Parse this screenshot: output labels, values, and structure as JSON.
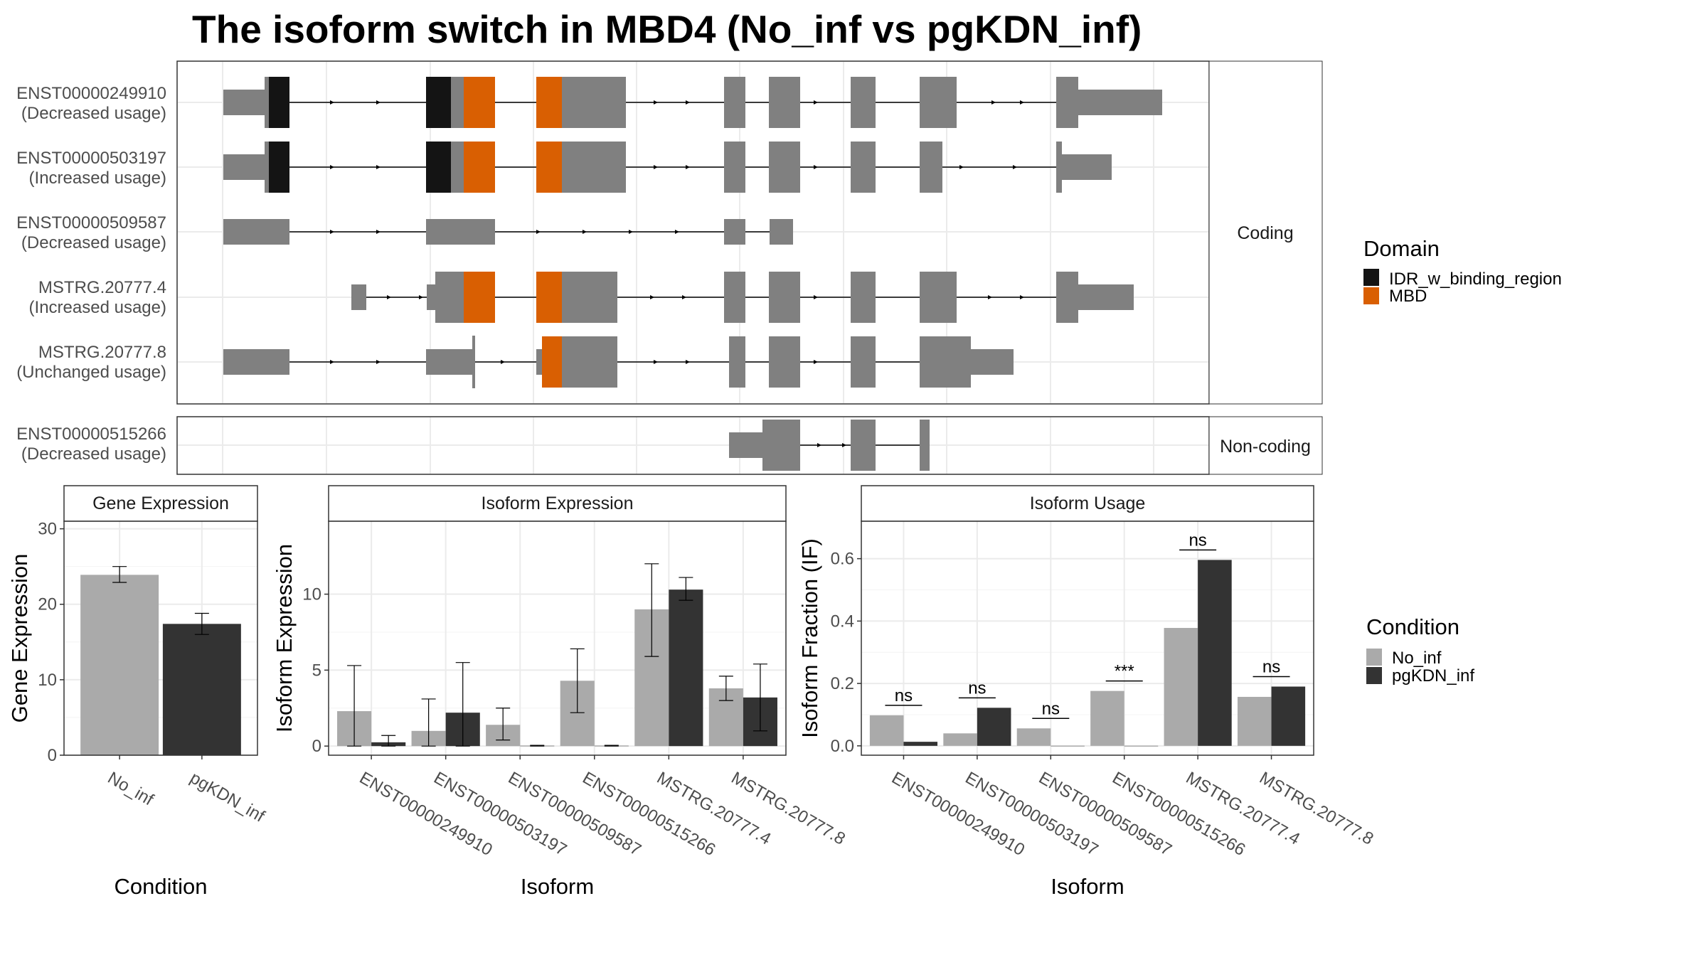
{
  "title": "The isoform switch in MBD4 (No_inf vs pgKDN_inf)",
  "colors": {
    "exon": "#808080",
    "idr": "#141414",
    "mbd": "#d95f02",
    "no_inf": "#aaaaaa",
    "pgkdn_inf": "#333333",
    "grid": "#ebebeb"
  },
  "structure": {
    "facets": [
      "Coding",
      "Non-coding"
    ],
    "transcripts": [
      {
        "id": "ENST00000249910",
        "usage": "(Decreased usage)"
      },
      {
        "id": "ENST00000503197",
        "usage": "(Increased usage)"
      },
      {
        "id": "ENST00000509587",
        "usage": "(Decreased usage)"
      },
      {
        "id": "MSTRG.20777.4",
        "usage": "(Increased usage)"
      },
      {
        "id": "MSTRG.20777.8",
        "usage": "(Unchanged usage)"
      },
      {
        "id": "ENST00000515266",
        "usage": "(Decreased usage)"
      }
    ]
  },
  "legends": {
    "domain": {
      "title": "Domain",
      "items": [
        "IDR_w_binding_region",
        "MBD"
      ]
    },
    "condition": {
      "title": "Condition",
      "items": [
        "No_inf",
        "pgKDN_inf"
      ]
    }
  },
  "chart_data": [
    {
      "type": "bar",
      "title": "Gene Expression",
      "xlabel": "Condition",
      "ylabel": "Gene Expression",
      "categories": [
        "No_inf",
        "pgKDN_inf"
      ],
      "values": [
        23.9,
        17.4
      ],
      "error": [
        [
          22.9,
          25.0
        ],
        [
          16.0,
          18.8
        ]
      ],
      "ylim": [
        0,
        31
      ],
      "yticks": [
        0,
        10,
        20,
        30
      ]
    },
    {
      "type": "bar",
      "title": "Isoform Expression",
      "xlabel": "Isoform",
      "ylabel": "Isoform Expression",
      "categories": [
        "ENST00000249910",
        "ENST00000503197",
        "ENST00000509587",
        "ENST00000515266",
        "MSTRG.20777.4",
        "MSTRG.20777.8"
      ],
      "ylim": [
        -0.6,
        14.8
      ],
      "yticks": [
        0,
        5,
        10
      ],
      "series": [
        {
          "name": "No_inf",
          "values": [
            2.3,
            1.0,
            1.4,
            4.3,
            9.0,
            3.8
          ],
          "error": [
            [
              0.0,
              5.3
            ],
            [
              0.0,
              3.1
            ],
            [
              0.4,
              2.5
            ],
            [
              2.2,
              6.4
            ],
            [
              5.9,
              12.0
            ],
            [
              3.0,
              4.6
            ]
          ]
        },
        {
          "name": "pgKDN_inf",
          "values": [
            0.25,
            2.2,
            0.02,
            0.02,
            10.3,
            3.2
          ],
          "error": [
            [
              0.0,
              0.7
            ],
            [
              0.0,
              5.5
            ],
            [
              0.0,
              0.05
            ],
            [
              0.0,
              0.05
            ],
            [
              9.6,
              11.1
            ],
            [
              1.0,
              5.4
            ]
          ]
        }
      ]
    },
    {
      "type": "bar",
      "title": "Isoform Usage",
      "xlabel": "Isoform",
      "ylabel": "Isoform Fraction (IF)",
      "categories": [
        "ENST00000249910",
        "ENST00000503197",
        "ENST00000509587",
        "ENST00000515266",
        "MSTRG.20777.4",
        "MSTRG.20777.8"
      ],
      "ylim": [
        -0.03,
        0.72
      ],
      "yticks": [
        0.0,
        0.2,
        0.4,
        0.6
      ],
      "series": [
        {
          "name": "No_inf",
          "values": [
            0.098,
            0.04,
            0.056,
            0.176,
            0.378,
            0.157
          ]
        },
        {
          "name": "pgKDN_inf",
          "values": [
            0.013,
            0.122,
            0.0,
            0.0,
            0.596,
            0.19
          ]
        }
      ],
      "significance": [
        "ns",
        "ns",
        "ns",
        "***",
        "ns",
        "ns"
      ]
    }
  ]
}
